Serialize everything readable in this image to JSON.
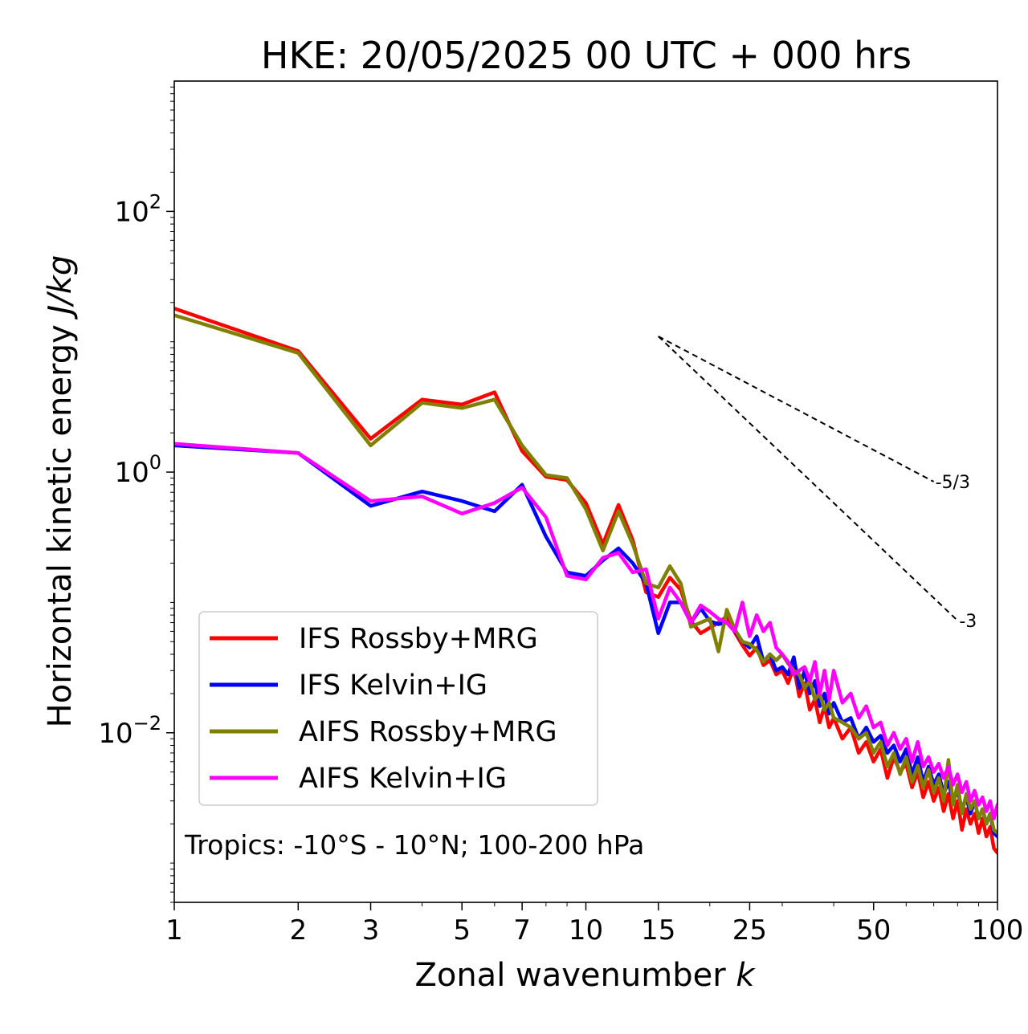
{
  "chart_data": {
    "type": "line",
    "title": "HKE: 20/05/2025 00 UTC + 000 hrs",
    "xlabel": "Zonal wavenumber",
    "xlabel_var": "k",
    "ylabel": "Horizontal kinetic energy",
    "ylabel_units": "J/kg",
    "x_scale": "log",
    "y_scale": "log",
    "xlim": [
      1,
      100
    ],
    "ylim": [
      0.0005,
      1000
    ],
    "xticks": [
      1,
      2,
      3,
      5,
      7,
      10,
      15,
      25,
      50,
      100
    ],
    "xtick_labels": [
      "1",
      "2",
      "3",
      "5",
      "7",
      "10",
      "15",
      "25",
      "50",
      "100"
    ],
    "yticks": [
      0.01,
      1,
      100
    ],
    "ytick_labels": [
      {
        "base": "10",
        "exp": "−2"
      },
      {
        "base": "10",
        "exp": "0"
      },
      {
        "base": "10",
        "exp": "2"
      }
    ],
    "legend_position": "lower-left",
    "annotation": "Tropics: -10°S - 10°N; 100-200 hPa",
    "reference_lines": [
      {
        "label": "-5/3",
        "slope": -1.6667,
        "x_start": 15,
        "y_start": 11,
        "x_end": 70
      },
      {
        "label": "-3",
        "slope": -3,
        "x_start": 15,
        "y_start": 11,
        "x_end": 80
      }
    ],
    "series": [
      {
        "name": "IFS Rossby+MRG",
        "color": "#ff0000",
        "x": [
          1,
          2,
          3,
          4,
          5,
          6,
          7,
          8,
          9,
          10,
          11,
          12,
          13,
          14,
          15,
          16,
          17,
          18,
          19,
          20,
          21,
          22,
          23,
          24,
          25,
          26,
          27,
          28,
          29,
          30,
          31,
          32,
          33,
          34,
          35,
          36,
          37,
          38,
          39,
          40,
          42,
          44,
          46,
          48,
          50,
          52,
          54,
          56,
          58,
          60,
          62,
          64,
          66,
          68,
          70,
          72,
          74,
          76,
          78,
          80,
          82,
          84,
          86,
          88,
          90,
          92,
          94,
          96,
          98,
          100
        ],
        "y": [
          18,
          8.5,
          1.8,
          3.6,
          3.3,
          4.1,
          1.45,
          0.92,
          0.87,
          0.58,
          0.28,
          0.56,
          0.3,
          0.12,
          0.11,
          0.155,
          0.125,
          0.072,
          0.058,
          0.064,
          0.07,
          0.078,
          0.059,
          0.047,
          0.039,
          0.045,
          0.033,
          0.036,
          0.028,
          0.03,
          0.024,
          0.032,
          0.019,
          0.024,
          0.015,
          0.018,
          0.012,
          0.016,
          0.011,
          0.013,
          0.009,
          0.011,
          0.007,
          0.0085,
          0.006,
          0.0075,
          0.0045,
          0.0065,
          0.005,
          0.0058,
          0.0038,
          0.005,
          0.0032,
          0.0042,
          0.003,
          0.0038,
          0.0025,
          0.0034,
          0.0022,
          0.003,
          0.0018,
          0.0026,
          0.002,
          0.0024,
          0.0017,
          0.0022,
          0.0016,
          0.0019,
          0.0013,
          0.0012
        ]
      },
      {
        "name": "IFS Kelvin+IG",
        "color": "#0000ff",
        "x": [
          1,
          2,
          3,
          4,
          5,
          6,
          7,
          8,
          9,
          10,
          11,
          12,
          13,
          14,
          15,
          16,
          17,
          18,
          19,
          20,
          21,
          22,
          23,
          24,
          25,
          26,
          27,
          28,
          29,
          30,
          31,
          32,
          33,
          34,
          35,
          36,
          37,
          38,
          39,
          40,
          42,
          44,
          46,
          48,
          50,
          52,
          54,
          56,
          58,
          60,
          62,
          64,
          66,
          68,
          70,
          72,
          74,
          76,
          78,
          80,
          82,
          84,
          86,
          88,
          90,
          92,
          94,
          96,
          98,
          100
        ],
        "y": [
          1.6,
          1.4,
          0.55,
          0.71,
          0.6,
          0.5,
          0.8,
          0.32,
          0.17,
          0.16,
          0.21,
          0.26,
          0.2,
          0.14,
          0.058,
          0.1,
          0.1,
          0.07,
          0.09,
          0.072,
          0.068,
          0.07,
          0.06,
          0.05,
          0.045,
          0.055,
          0.035,
          0.04,
          0.03,
          0.032,
          0.028,
          0.038,
          0.022,
          0.03,
          0.02,
          0.025,
          0.016,
          0.02,
          0.014,
          0.017,
          0.012,
          0.013,
          0.009,
          0.011,
          0.0085,
          0.0095,
          0.007,
          0.008,
          0.006,
          0.0075,
          0.0048,
          0.0065,
          0.0042,
          0.0055,
          0.004,
          0.0048,
          0.0034,
          0.0042,
          0.003,
          0.0036,
          0.0026,
          0.0032,
          0.0024,
          0.003,
          0.0022,
          0.0026,
          0.002,
          0.0024,
          0.0017,
          0.0016
        ]
      },
      {
        "name": "AIFS Rossby+MRG",
        "color": "#808000",
        "x": [
          1,
          2,
          3,
          4,
          5,
          6,
          7,
          8,
          9,
          10,
          11,
          12,
          13,
          14,
          15,
          16,
          17,
          18,
          19,
          20,
          21,
          22,
          23,
          24,
          25,
          26,
          27,
          28,
          29,
          30,
          31,
          32,
          33,
          34,
          35,
          36,
          37,
          38,
          39,
          40,
          42,
          44,
          46,
          48,
          50,
          52,
          54,
          56,
          58,
          60,
          62,
          64,
          66,
          68,
          70,
          72,
          74,
          76,
          78,
          80,
          82,
          84,
          86,
          88,
          90,
          92,
          94,
          96,
          98,
          100
        ],
        "y": [
          16,
          8.2,
          1.6,
          3.4,
          3.1,
          3.6,
          1.6,
          0.95,
          0.9,
          0.52,
          0.25,
          0.5,
          0.28,
          0.14,
          0.13,
          0.19,
          0.14,
          0.065,
          0.07,
          0.075,
          0.042,
          0.088,
          0.062,
          0.05,
          0.048,
          0.043,
          0.035,
          0.04,
          0.036,
          0.04,
          0.034,
          0.03,
          0.028,
          0.022,
          0.025,
          0.018,
          0.02,
          0.015,
          0.017,
          0.013,
          0.012,
          0.011,
          0.009,
          0.01,
          0.007,
          0.0085,
          0.0055,
          0.007,
          0.0048,
          0.0065,
          0.0042,
          0.0056,
          0.0038,
          0.0052,
          0.0035,
          0.0045,
          0.003,
          0.0062,
          0.0028,
          0.004,
          0.0024,
          0.0034,
          0.0026,
          0.003,
          0.0022,
          0.0026,
          0.002,
          0.0024,
          0.0018,
          0.0017
        ]
      },
      {
        "name": "AIFS Kelvin+IG",
        "color": "#ff00ff",
        "x": [
          1,
          2,
          3,
          4,
          5,
          6,
          7,
          8,
          9,
          10,
          11,
          12,
          13,
          14,
          15,
          16,
          17,
          18,
          19,
          20,
          21,
          22,
          23,
          24,
          25,
          26,
          27,
          28,
          29,
          30,
          31,
          32,
          33,
          34,
          35,
          36,
          37,
          38,
          39,
          40,
          42,
          44,
          46,
          48,
          50,
          52,
          54,
          56,
          58,
          60,
          62,
          64,
          66,
          68,
          70,
          72,
          74,
          76,
          78,
          80,
          82,
          84,
          86,
          88,
          90,
          92,
          94,
          96,
          98,
          100
        ],
        "y": [
          1.65,
          1.4,
          0.6,
          0.65,
          0.48,
          0.58,
          0.76,
          0.45,
          0.16,
          0.15,
          0.22,
          0.24,
          0.17,
          0.18,
          0.075,
          0.13,
          0.1,
          0.07,
          0.095,
          0.085,
          0.075,
          0.07,
          0.06,
          0.1,
          0.055,
          0.08,
          0.06,
          0.07,
          0.045,
          0.04,
          0.035,
          0.028,
          0.03,
          0.032,
          0.025,
          0.035,
          0.02,
          0.03,
          0.018,
          0.03,
          0.017,
          0.02,
          0.013,
          0.016,
          0.011,
          0.012,
          0.008,
          0.01,
          0.0075,
          0.009,
          0.006,
          0.0085,
          0.0055,
          0.0065,
          0.005,
          0.0058,
          0.0045,
          0.0055,
          0.004,
          0.0048,
          0.0035,
          0.0042,
          0.003,
          0.0036,
          0.0028,
          0.0032,
          0.0025,
          0.003,
          0.0022,
          0.0028
        ]
      }
    ]
  }
}
